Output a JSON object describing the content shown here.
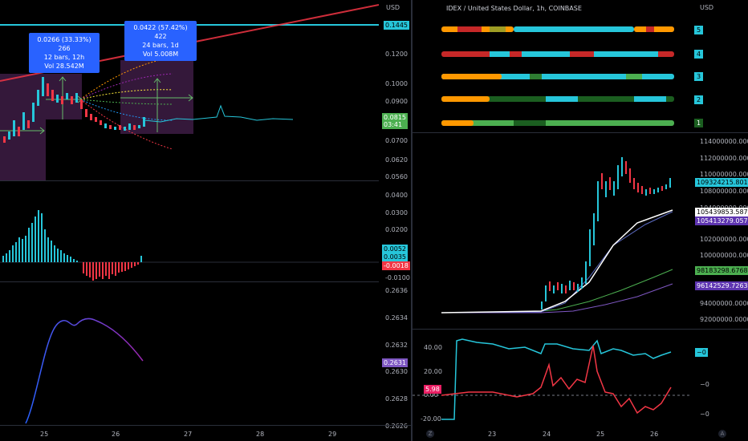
{
  "left_chart": {
    "currency": "USD",
    "price_axis": [
      "0.1200",
      "0.1000",
      "0.0900",
      "0.0700",
      "0.0620",
      "0.0560"
    ],
    "price_tags": {
      "cyan": "0.1445",
      "green_price": "0.0815",
      "green_time": "03:41"
    },
    "tooltip1": {
      "line1": "0.0266 (33.33%) 266",
      "line2": "12 bars, 12h",
      "line3": "Vol 28.542M"
    },
    "tooltip2": {
      "line1": "0.0422 (57.42%) 422",
      "line2": "24 bars, 1d",
      "line3": "Vol 5.008M"
    },
    "macd_axis": [
      "0.0400",
      "0.0300",
      "0.0200",
      "-0.0100"
    ],
    "macd_tags": {
      "a": "0.0052",
      "b": "0.0035",
      "c": "-0.0018"
    },
    "osc_axis": [
      "0.2636",
      "0.2634",
      "0.2632",
      "0.2630",
      "0.2628",
      "0.2626"
    ],
    "osc_tag": "0.2631",
    "time_axis": [
      "25",
      "26",
      "27",
      "28",
      "29"
    ]
  },
  "right_chart": {
    "title": "IDEX / United States Dollar, 1h, COINBASE",
    "currency": "USD",
    "rows": [
      "5",
      "4",
      "3",
      "2",
      "1"
    ],
    "price_axis": [
      "114000000.0000",
      "112000000.0000",
      "110000000.0000",
      "108000000.0000",
      "104000000.0000",
      "102000000.0000",
      "100000000.0000",
      "94000000.0000",
      "92000000.0000"
    ],
    "price_tags": {
      "cyan": "109324215.8010",
      "white": "105439853.5875",
      "purple1": "105413279.0578",
      "green": "98183298.6768",
      "purple2": "96142529.7263"
    },
    "osc_axis": [
      "40.00",
      "20.00",
      "0.00",
      "-20.00"
    ],
    "osc_right": [
      "−0",
      "−0",
      "−0"
    ],
    "osc_tag": "5.98",
    "time_axis": [
      "23",
      "24",
      "25",
      "26"
    ],
    "corner_left": "Z",
    "corner_right": "A"
  },
  "colors": {
    "cyan": "#26c6da",
    "green": "#4caf50",
    "red": "#f23645",
    "purple": "#7e57c2",
    "blue": "#2962ff",
    "pink": "#e91e63"
  }
}
